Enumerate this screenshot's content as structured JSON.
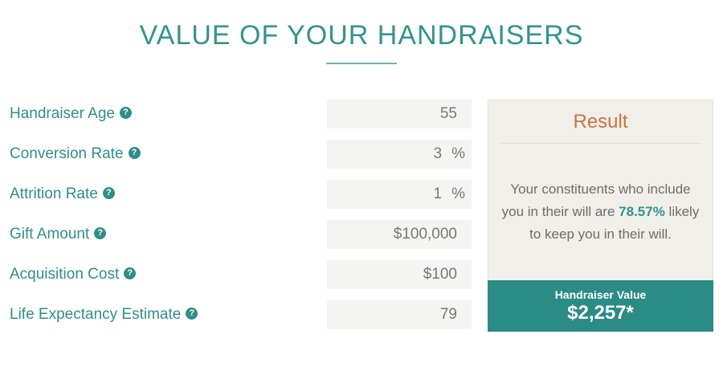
{
  "page": {
    "title": "VALUE OF YOUR HANDRAISERS"
  },
  "help_icon_glyph": "?",
  "form": {
    "fields": [
      {
        "label": "Handraiser Age",
        "value": "55",
        "suffix": ""
      },
      {
        "label": "Conversion Rate",
        "value": "3",
        "suffix": "%"
      },
      {
        "label": "Attrition Rate",
        "value": "1",
        "suffix": "%"
      },
      {
        "label": "Gift Amount",
        "value": "$100,000",
        "suffix": ""
      },
      {
        "label": "Acquisition Cost",
        "value": "$100",
        "suffix": ""
      },
      {
        "label": "Life Expectancy Estimate",
        "value": "79",
        "suffix": ""
      }
    ]
  },
  "result": {
    "heading": "Result",
    "message_prefix": "Your constituents who include you in their will are ",
    "message_highlight": "78.57%",
    "message_suffix": " likely to keep you in their will.",
    "value_label": "Handraiser Value",
    "value_amount": "$2,257*"
  },
  "colors": {
    "teal_text": "#2f8f88",
    "teal_footer": "#2b8b85",
    "orange_heading": "#c9743f",
    "panel_background": "#f1efe9",
    "input_background": "#f4f4f3",
    "message_gray": "#6d6d6d"
  }
}
